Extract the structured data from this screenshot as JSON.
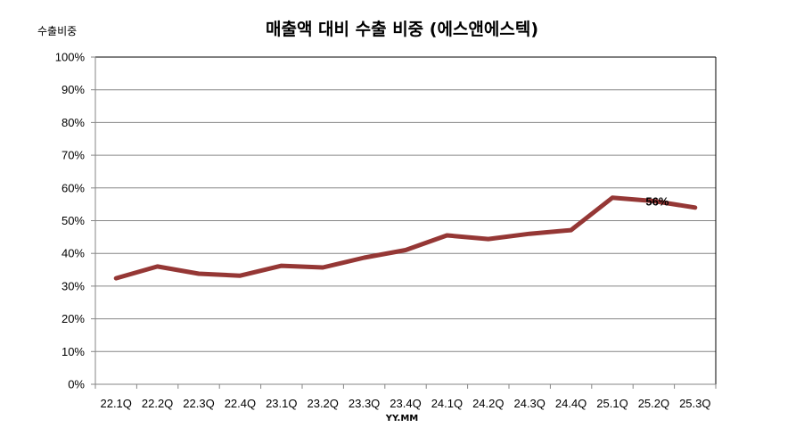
{
  "chart_data": {
    "type": "line",
    "title": "매출액 대비 수출 비중 (에스앤에스텍)",
    "xlabel": "YY.MM",
    "ylabel": "수출비중",
    "categories": [
      "22.1Q",
      "22.2Q",
      "22.3Q",
      "22.4Q",
      "23.1Q",
      "23.2Q",
      "23.3Q",
      "23.4Q",
      "24.1Q",
      "24.2Q",
      "24.3Q",
      "24.4Q",
      "25.1Q",
      "25.2Q",
      "25.3Q"
    ],
    "series": [
      {
        "name": "수출비중",
        "color": "#953735",
        "values": [
          32.4,
          36.0,
          33.8,
          33.2,
          36.2,
          35.7,
          38.7,
          41.0,
          45.5,
          44.4,
          46.0,
          47.1,
          57.0,
          56.0,
          54.0
        ]
      }
    ],
    "yticks": [
      "0%",
      "10%",
      "20%",
      "30%",
      "40%",
      "50%",
      "60%",
      "70%",
      "80%",
      "90%",
      "100%"
    ],
    "ylim": [
      0,
      100
    ],
    "grid": true,
    "legend": "none",
    "annotations": [
      {
        "category": "25.2Q",
        "text": "56%"
      }
    ]
  }
}
